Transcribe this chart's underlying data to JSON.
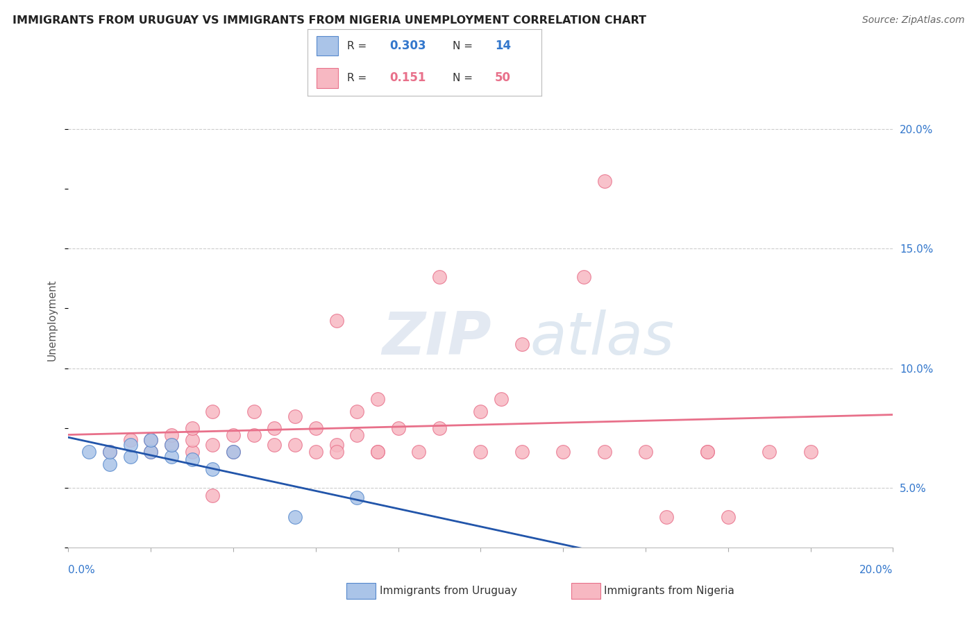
{
  "title": "IMMIGRANTS FROM URUGUAY VS IMMIGRANTS FROM NIGERIA UNEMPLOYMENT CORRELATION CHART",
  "source": "Source: ZipAtlas.com",
  "ylabel": "Unemployment",
  "legend_r1_val": "0.303",
  "legend_n1_val": "14",
  "legend_r2_val": "0.151",
  "legend_n2_val": "50",
  "yticks": [
    0.05,
    0.1,
    0.15,
    0.2
  ],
  "ytick_labels": [
    "5.0%",
    "10.0%",
    "15.0%",
    "20.0%"
  ],
  "xlim": [
    0.0,
    0.2
  ],
  "ylim": [
    0.025,
    0.215
  ],
  "watermark_zip": "ZIP",
  "watermark_atlas": "atlas",
  "uruguay_color": "#aac4e8",
  "uruguay_edge": "#5588cc",
  "nigeria_color": "#f7b8c2",
  "nigeria_edge": "#e8708a",
  "uruguay_line_color": "#2255aa",
  "nigeria_line_color": "#e8708a",
  "dashed_line_color": "#99bbdd",
  "background_color": "#ffffff",
  "grid_color": "#cccccc",
  "uruguay_scatter_x": [
    0.005,
    0.01,
    0.01,
    0.015,
    0.015,
    0.02,
    0.02,
    0.025,
    0.025,
    0.03,
    0.035,
    0.04,
    0.055,
    0.07
  ],
  "uruguay_scatter_y": [
    0.065,
    0.06,
    0.065,
    0.063,
    0.068,
    0.065,
    0.07,
    0.063,
    0.068,
    0.062,
    0.058,
    0.065,
    0.038,
    0.046
  ],
  "nigeria_scatter_x": [
    0.01,
    0.015,
    0.02,
    0.02,
    0.025,
    0.025,
    0.03,
    0.03,
    0.03,
    0.035,
    0.035,
    0.04,
    0.04,
    0.045,
    0.045,
    0.05,
    0.05,
    0.055,
    0.06,
    0.06,
    0.065,
    0.065,
    0.07,
    0.07,
    0.075,
    0.08,
    0.085,
    0.09,
    0.1,
    0.1,
    0.105,
    0.11,
    0.12,
    0.125,
    0.13,
    0.14,
    0.145,
    0.155,
    0.16,
    0.17,
    0.18,
    0.055,
    0.065,
    0.075,
    0.09,
    0.11,
    0.155,
    0.13,
    0.075,
    0.035
  ],
  "nigeria_scatter_y": [
    0.065,
    0.07,
    0.065,
    0.07,
    0.068,
    0.072,
    0.065,
    0.07,
    0.075,
    0.068,
    0.082,
    0.065,
    0.072,
    0.072,
    0.082,
    0.068,
    0.075,
    0.08,
    0.065,
    0.075,
    0.068,
    0.12,
    0.072,
    0.082,
    0.087,
    0.075,
    0.065,
    0.075,
    0.082,
    0.065,
    0.087,
    0.11,
    0.065,
    0.138,
    0.065,
    0.065,
    0.038,
    0.065,
    0.038,
    0.065,
    0.065,
    0.068,
    0.065,
    0.065,
    0.138,
    0.065,
    0.065,
    0.178,
    0.065,
    0.047
  ]
}
